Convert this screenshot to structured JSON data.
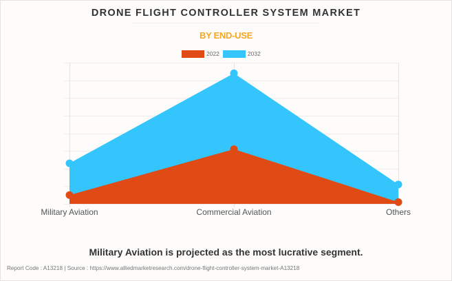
{
  "title": "DRONE FLIGHT CONTROLLER SYSTEM MARKET",
  "subtitle": "BY END-USE",
  "legend": [
    {
      "label": "2022",
      "color": "#e04a14"
    },
    {
      "label": "2032",
      "color": "#33c5fb"
    }
  ],
  "footer_note": "Military Aviation is projected as the most lucrative segment.",
  "source_line": "Report Code : A13218  |  Source : https://www.alliedmarketresearch.com/drone-flight-controller-system-market-A13218",
  "chart_data": {
    "type": "area",
    "title": "DRONE FLIGHT CONTROLLER SYSTEM MARKET",
    "subtitle": "BY END-USE",
    "categories": [
      "Military Aviation",
      "Commercial Aviation",
      "Others"
    ],
    "series": [
      {
        "name": "2032",
        "color": "#33c5fb",
        "values": [
          2.3,
          7.4,
          1.1
        ]
      },
      {
        "name": "2022",
        "color": "#e04a14",
        "values": [
          0.5,
          3.1,
          0.1
        ]
      }
    ],
    "xlabel": "",
    "ylabel": "",
    "ylim": [
      0,
      8
    ],
    "y_tick_labels_visible": false,
    "grid": true,
    "legend_position": "top-center",
    "units_note": "relative scale (no y-axis values shown)"
  }
}
